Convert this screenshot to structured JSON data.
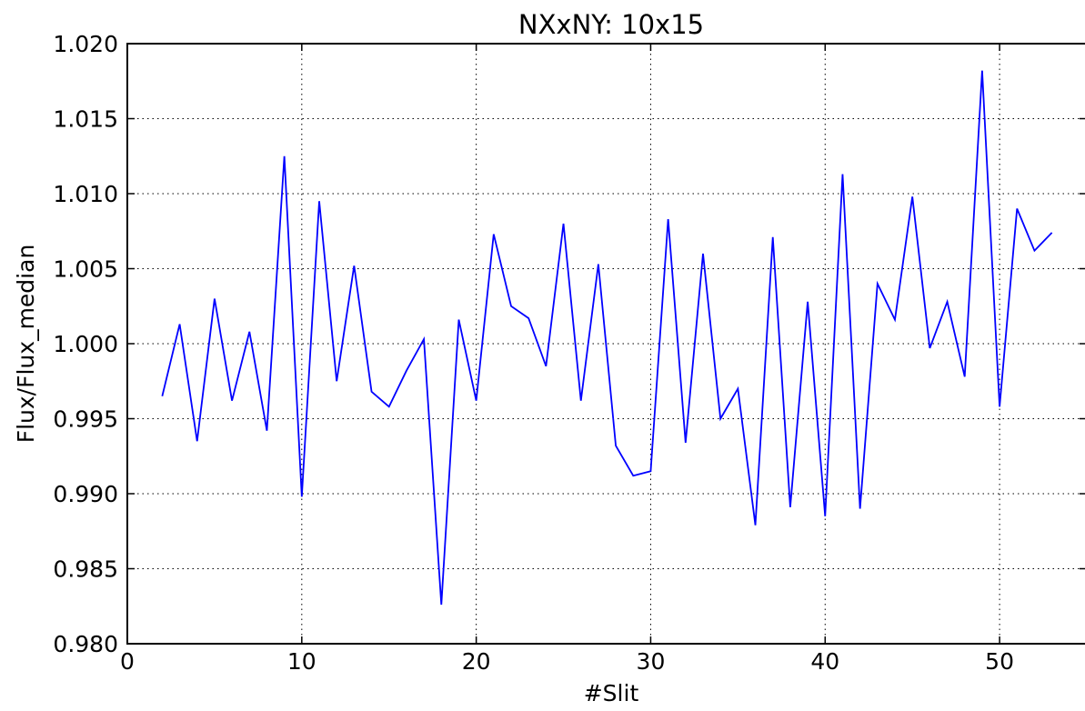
{
  "chart_data": {
    "type": "line",
    "title": "NXxNY: 10x15",
    "xlabel": "#Slit",
    "ylabel": "Flux/Flux_median",
    "xlim": [
      0,
      55
    ],
    "ylim": [
      0.98,
      1.02
    ],
    "xticks": [
      0,
      10,
      20,
      30,
      40,
      50
    ],
    "xtick_labels": [
      "0",
      "10",
      "20",
      "30",
      "40",
      "50"
    ],
    "yticks": [
      0.98,
      0.985,
      0.99,
      0.995,
      1.0,
      1.005,
      1.01,
      1.015,
      1.02
    ],
    "ytick_labels": [
      "0.980",
      "0.985",
      "0.990",
      "0.995",
      "1.000",
      "1.005",
      "1.010",
      "1.015",
      "1.020"
    ],
    "grid": true,
    "line_color": "#0000ff",
    "series": [
      {
        "x": [
          2,
          3,
          4,
          5,
          6,
          7,
          8,
          9,
          10,
          11,
          12,
          13,
          14,
          15,
          16,
          17,
          18,
          19,
          20,
          21,
          22,
          23,
          24,
          25,
          26,
          27,
          28,
          29,
          30,
          31,
          32,
          33,
          34,
          35,
          36,
          37,
          38,
          39,
          40,
          41,
          42,
          43,
          44,
          45,
          46,
          47,
          48,
          49,
          50,
          51,
          52,
          53
        ],
        "values": [
          0.9965,
          1.0013,
          0.9935,
          1.003,
          0.9962,
          1.0008,
          0.9942,
          1.0125,
          0.9898,
          1.0095,
          0.9975,
          1.0052,
          0.9968,
          0.9958,
          0.9982,
          1.0003,
          0.9826,
          1.0016,
          0.9962,
          1.0073,
          1.0025,
          1.0017,
          0.9985,
          1.008,
          0.9962,
          1.0053,
          0.9932,
          0.9912,
          0.9915,
          1.0083,
          0.9934,
          1.006,
          0.995,
          0.997,
          0.9879,
          1.0071,
          0.9891,
          1.0028,
          0.9885,
          1.0113,
          0.989,
          1.004,
          1.0016,
          1.0098,
          0.9997,
          1.0028,
          0.9978,
          1.0182,
          0.9958,
          1.009,
          1.0062,
          1.0074
        ]
      }
    ]
  }
}
